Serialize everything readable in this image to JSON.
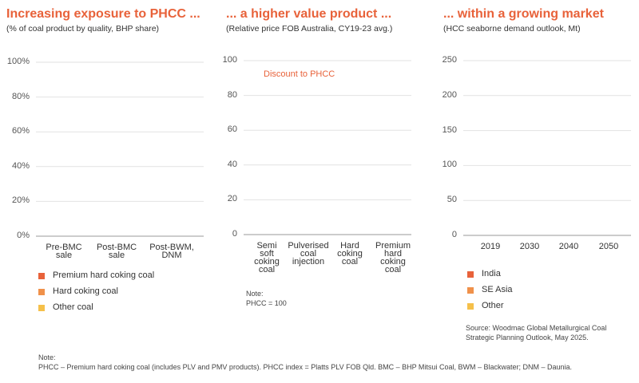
{
  "chart_data": [
    {
      "type": "bar",
      "title": "Increasing exposure to PHCC ...",
      "subtitle": "(% of coal product by quality, BHP share)",
      "categories": [
        "Pre-BMC sale",
        "Post-BMC sale",
        "Post-BWM, DNM"
      ],
      "series": [
        {
          "name": "Premium hard coking coal",
          "color": "#e8623a"
        },
        {
          "name": "Hard coking coal",
          "color": "#f0914a"
        },
        {
          "name": "Other coal",
          "color": "#f5c04a"
        }
      ],
      "ylim": [
        0,
        100
      ],
      "yticks": [
        {
          "value": 0,
          "label": "0%"
        },
        {
          "value": 20,
          "label": "20%"
        },
        {
          "value": 40,
          "label": "40%"
        },
        {
          "value": 60,
          "label": "60%"
        },
        {
          "value": 80,
          "label": "80%"
        },
        {
          "value": 100,
          "label": "100%"
        }
      ],
      "grid": true
    },
    {
      "type": "bar",
      "title": "... a higher value product ...",
      "subtitle": "(Relative price FOB Australia, CY19-23 avg.)",
      "annotation": "Discount to PHCC",
      "categories": [
        "Semi soft coking coal",
        "Pulverised coal injection",
        "Hard coking coal",
        "Premium hard coking coal"
      ],
      "ylim": [
        0,
        100
      ],
      "yticks": [
        0,
        20,
        40,
        60,
        80,
        100
      ],
      "grid": true,
      "note": [
        "Note:",
        "PHCC = 100"
      ]
    },
    {
      "type": "bar",
      "title": "... within a growing market",
      "subtitle": "(HCC seaborne demand outlook, Mt)",
      "categories": [
        "2019",
        "2030",
        "2040",
        "2050"
      ],
      "series": [
        {
          "name": "India",
          "color": "#e8623a"
        },
        {
          "name": "SE Asia",
          "color": "#f0914a"
        },
        {
          "name": "Other",
          "color": "#f5c04a"
        }
      ],
      "ylim": [
        0,
        250
      ],
      "yticks": [
        0,
        50,
        100,
        150,
        200,
        250
      ],
      "grid": true,
      "source": "Source: Woodmac Global Metallurgical Coal Strategic Planning Outlook, May 2025."
    }
  ],
  "footnote": [
    "Note:",
    "PHCC – Premium hard coking coal (includes PLV and PMV products). PHCC index = Platts PLV FOB Qld. BMC – BHP Mitsui Coal, BWM – Blackwater; DNM – Daunia."
  ]
}
